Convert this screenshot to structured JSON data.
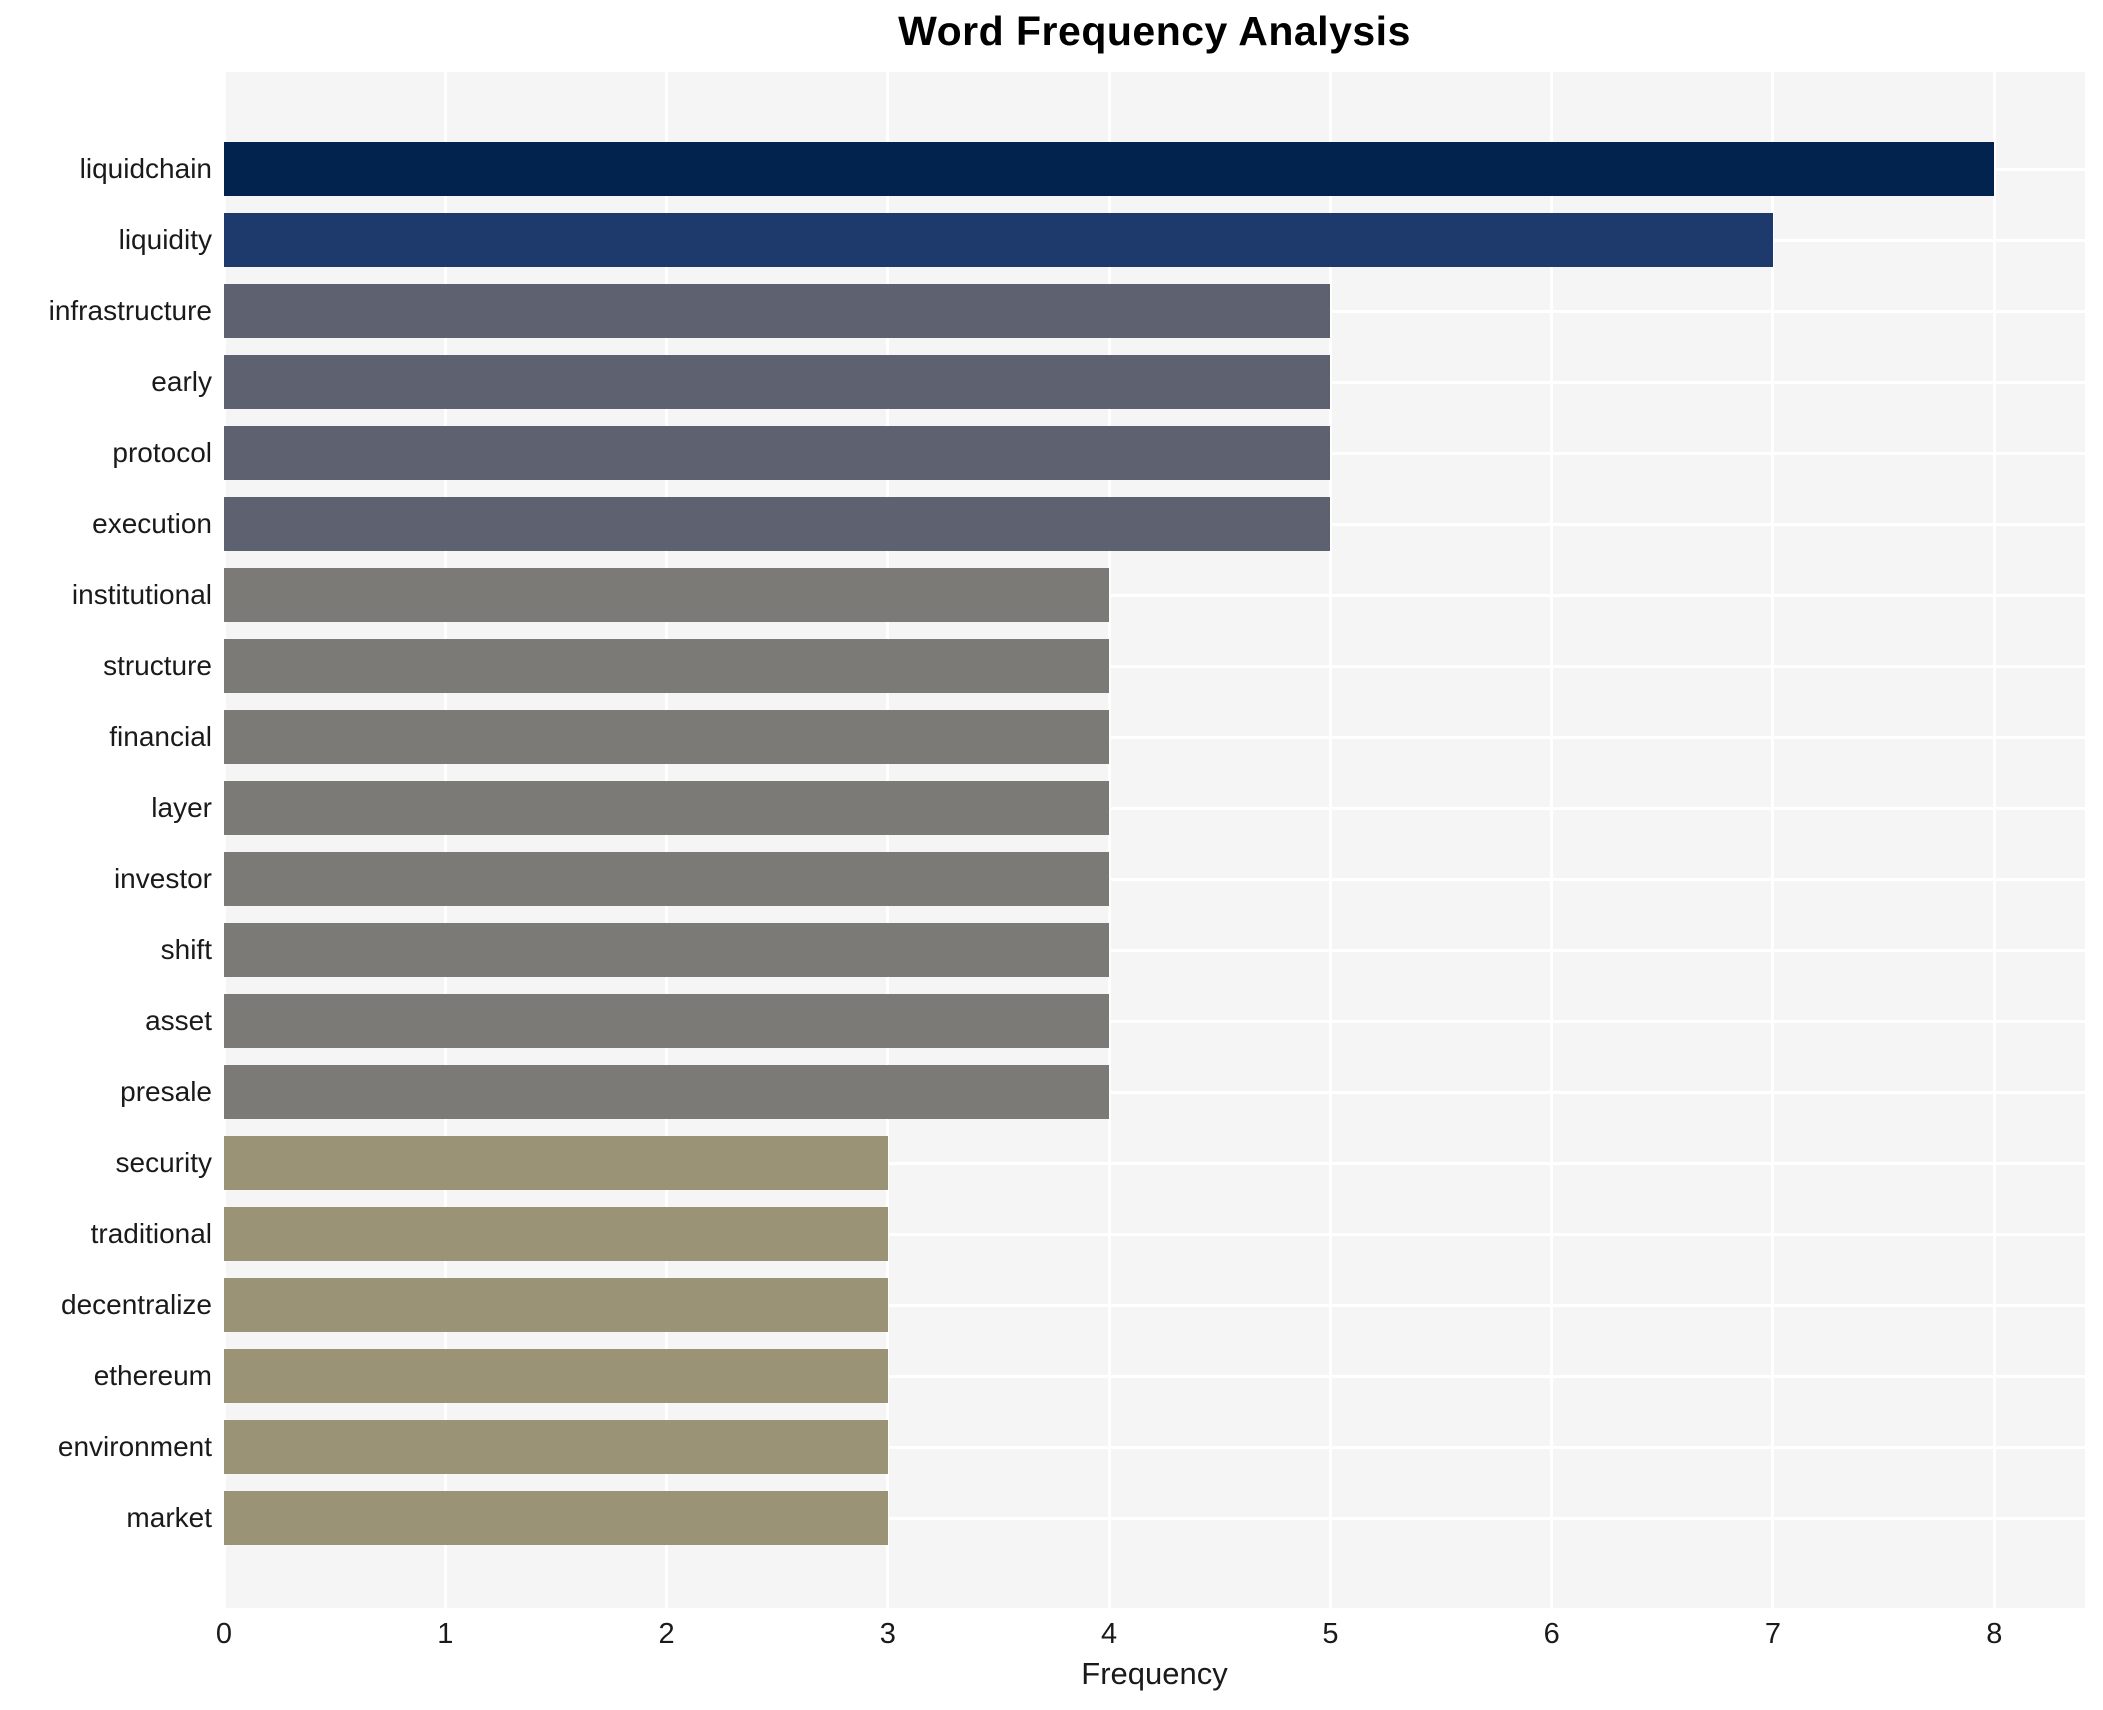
{
  "title": "Word Frequency Analysis",
  "chart_data": {
    "type": "bar",
    "orientation": "horizontal",
    "title": "Word Frequency Analysis",
    "xlabel": "Frequency",
    "ylabel": "",
    "categories": [
      "liquidchain",
      "liquidity",
      "infrastructure",
      "early",
      "protocol",
      "execution",
      "institutional",
      "structure",
      "financial",
      "layer",
      "investor",
      "shift",
      "asset",
      "presale",
      "security",
      "traditional",
      "decentralize",
      "ethereum",
      "environment",
      "market"
    ],
    "values": [
      8,
      7,
      5,
      5,
      5,
      5,
      4,
      4,
      4,
      4,
      4,
      4,
      4,
      4,
      3,
      3,
      3,
      3,
      3,
      3
    ],
    "bar_colors": [
      "#02234d",
      "#1e3a6d",
      "#5d6170",
      "#5d6170",
      "#5d6170",
      "#5d6170",
      "#7b7a77",
      "#7b7a77",
      "#7b7a77",
      "#7b7a77",
      "#7b7a77",
      "#7b7a77",
      "#7b7a77",
      "#7b7a77",
      "#9a9375",
      "#9a9375",
      "#9a9375",
      "#9a9375",
      "#9a9375",
      "#9a9375"
    ],
    "xticks": [
      0,
      1,
      2,
      3,
      4,
      5,
      6,
      7,
      8
    ],
    "xlim": [
      0,
      8.41
    ],
    "grid": true,
    "legend": "none",
    "plot_background": "#f5f5f6",
    "grid_color": "#ffffff"
  }
}
